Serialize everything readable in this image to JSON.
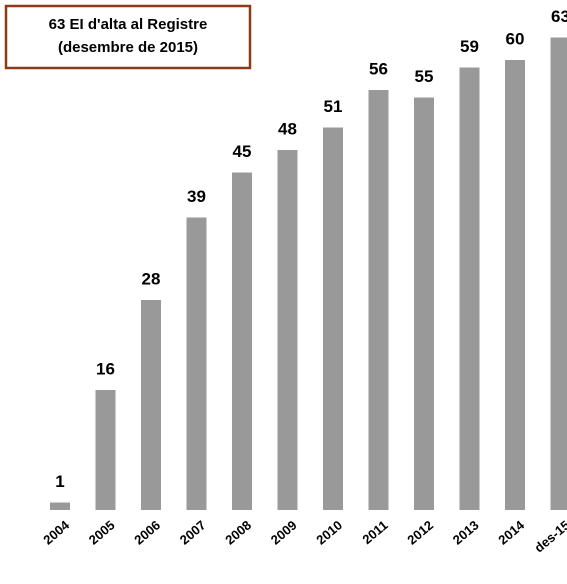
{
  "chart_data": {
    "type": "bar",
    "title": "63 EI d'alta al Registre",
    "subtitle": "(desembre de 2015)",
    "categories": [
      "2004",
      "2005",
      "2006",
      "2007",
      "2008",
      "2009",
      "2010",
      "2011",
      "2012",
      "2013",
      "2014",
      "des-15"
    ],
    "values": [
      1,
      16,
      28,
      39,
      45,
      48,
      51,
      56,
      55,
      59,
      60,
      63
    ],
    "color": "#999999"
  }
}
